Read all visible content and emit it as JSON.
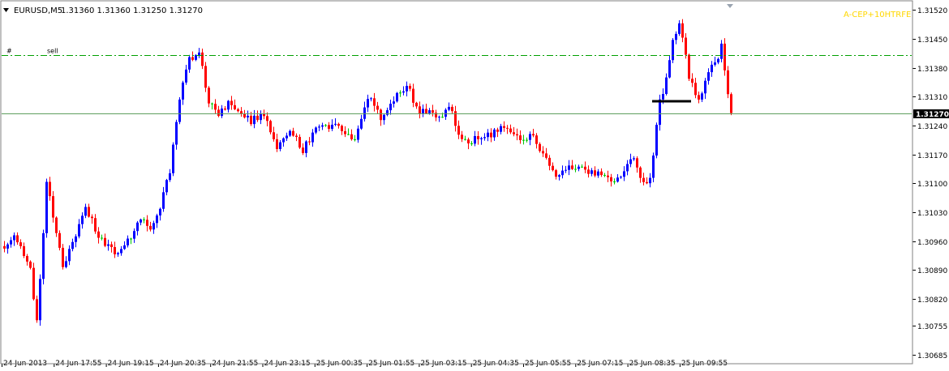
{
  "header": {
    "menu_icon": "triangle-down-icon",
    "symbol_timeframe": "EURUSD,M5",
    "ohlc": "1.31360 1.31360 1.31250 1.31270"
  },
  "indicator_label": "A-CEP+10HTRFE",
  "order_line": {
    "ticket": "#",
    "type": "sell",
    "price": 1.3141
  },
  "current_price": {
    "value": 1.3127,
    "label": "1.31270"
  },
  "colors": {
    "bull": "#0000ff",
    "bear": "#ff0000",
    "doji": "#00c800",
    "order_line": "#00a000",
    "price_line": "#5f9f5f",
    "indicator_label": "#ffd700",
    "price_badge_bg": "#000000"
  },
  "chart_data": {
    "type": "candlestick",
    "symbol": "EURUSD",
    "timeframe": "M5",
    "ylim": [
      1.30665,
      1.3154
    ],
    "y_ticks": [
      1.3152,
      1.3145,
      1.3138,
      1.3131,
      1.3124,
      1.3117,
      1.311,
      1.3103,
      1.3096,
      1.3089,
      1.3082,
      1.30755,
      1.30685
    ],
    "y_tick_labels": [
      "1.31520",
      "1.31450",
      "1.31380",
      "1.31310",
      "1.31240",
      "1.31170",
      "1.31100",
      "1.31030",
      "1.30960",
      "1.30890",
      "1.30820",
      "1.30755",
      "1.30685"
    ],
    "x_labels": [
      "24 Jun 2013",
      "24 Jun 17:55",
      "24 Jun 19:15",
      "24 Jun 20:35",
      "24 Jun 21:55",
      "24 Jun 23:15",
      "25 Jun 00:35",
      "25 Jun 01:55",
      "25 Jun 03:15",
      "25 Jun 04:35",
      "25 Jun 05:55",
      "25 Jun 07:15",
      "25 Jun 08:35",
      "25 Jun 09:55"
    ],
    "swing_path": [
      [
        0,
        1.3094
      ],
      [
        3,
        1.3098
      ],
      [
        8,
        1.3089
      ],
      [
        10,
        1.3076
      ],
      [
        13,
        1.311
      ],
      [
        18,
        1.309
      ],
      [
        25,
        1.3104
      ],
      [
        30,
        1.3096
      ],
      [
        35,
        1.3093
      ],
      [
        38,
        1.3096
      ],
      [
        42,
        1.3101
      ],
      [
        45,
        1.3099
      ],
      [
        48,
        1.3104
      ],
      [
        51,
        1.3113
      ],
      [
        54,
        1.3131
      ],
      [
        57,
        1.314
      ],
      [
        60,
        1.3142
      ],
      [
        63,
        1.313
      ],
      [
        66,
        1.3126
      ],
      [
        69,
        1.313
      ],
      [
        72,
        1.3128
      ],
      [
        76,
        1.3125
      ],
      [
        80,
        1.3127
      ],
      [
        84,
        1.3119
      ],
      [
        88,
        1.3123
      ],
      [
        92,
        1.3118
      ],
      [
        96,
        1.3123
      ],
      [
        100,
        1.3124
      ],
      [
        104,
        1.3123
      ],
      [
        108,
        1.3121
      ],
      [
        112,
        1.3131
      ],
      [
        116,
        1.3126
      ],
      [
        120,
        1.313
      ],
      [
        124,
        1.3134
      ],
      [
        127,
        1.3128
      ],
      [
        131,
        1.3127
      ],
      [
        134,
        1.3126
      ],
      [
        137,
        1.3129
      ],
      [
        140,
        1.3122
      ],
      [
        143,
        1.312
      ],
      [
        146,
        1.3121
      ],
      [
        150,
        1.3122
      ],
      [
        153,
        1.3123
      ],
      [
        156,
        1.3123
      ],
      [
        160,
        1.312
      ],
      [
        163,
        1.3122
      ],
      [
        166,
        1.3117
      ],
      [
        170,
        1.3112
      ],
      [
        173,
        1.3114
      ],
      [
        176,
        1.3114
      ],
      [
        180,
        1.3113
      ],
      [
        184,
        1.3112
      ],
      [
        188,
        1.3111
      ],
      [
        191,
        1.3113
      ],
      [
        194,
        1.3116
      ],
      [
        197,
        1.311
      ],
      [
        199,
        1.3111
      ],
      [
        202,
        1.313
      ],
      [
        204,
        1.3135
      ],
      [
        206,
        1.3144
      ],
      [
        208,
        1.3149
      ],
      [
        209,
        1.3145
      ],
      [
        211,
        1.3136
      ],
      [
        214,
        1.313
      ],
      [
        216,
        1.3135
      ],
      [
        218,
        1.3138
      ],
      [
        220,
        1.3141
      ],
      [
        221,
        1.3143
      ],
      [
        223,
        1.3132
      ],
      [
        224,
        1.3127
      ]
    ],
    "horizontal_segment": {
      "price": 1.31298,
      "from_bar": 200,
      "to_bar": 212
    }
  }
}
